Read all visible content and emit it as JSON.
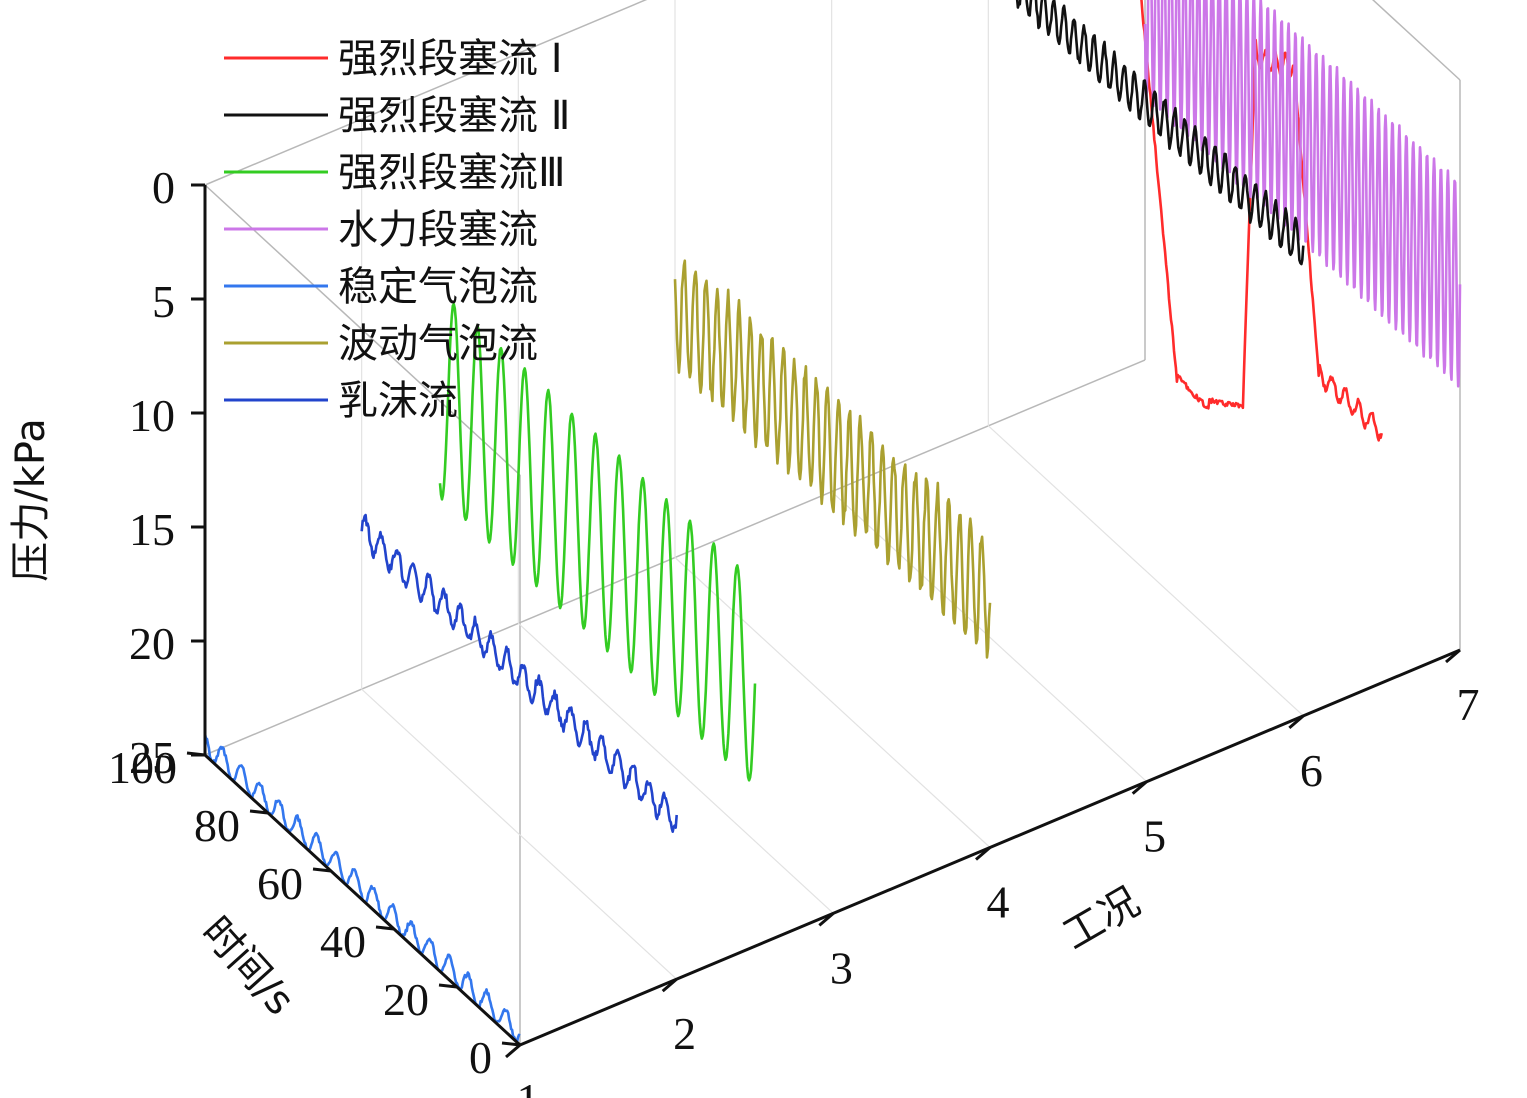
{
  "chart_data": {
    "type": "line",
    "projection": "3d",
    "xlabel": "工况",
    "ylabel": "时间/s",
    "zlabel": "压力/kPa",
    "x_ticks": [
      "1",
      "2",
      "3",
      "4",
      "5",
      "6",
      "7"
    ],
    "y_ticks": [
      "0",
      "20",
      "40",
      "60",
      "80",
      "100"
    ],
    "z_ticks": [
      "0",
      "5",
      "10",
      "15",
      "20",
      "25"
    ],
    "xlim": [
      1,
      7
    ],
    "ylim": [
      0,
      100
    ],
    "zlim": [
      0,
      25
    ],
    "z_inverted": true,
    "legend_position": "top-left",
    "series": [
      {
        "name": "强烈段塞流 Ⅰ",
        "color": "#ff2b2b",
        "condition": 6.5,
        "pressure_mean": 12,
        "amplitude": 0.4,
        "period": 8,
        "noise": 0.3,
        "kind": "slug"
      },
      {
        "name": "强烈段塞流 Ⅱ",
        "color": "#111111",
        "condition": 6.0,
        "pressure_mean": 4.5,
        "amplitude": 0.9,
        "period": 3.2,
        "noise": 0.3,
        "kind": "wave"
      },
      {
        "name": "强烈段塞流Ⅲ",
        "color": "#33cc22",
        "condition": 2.5,
        "pressure_mean": 13.5,
        "amplitude": 4.5,
        "period": 7.5,
        "noise": 0.1,
        "kind": "wave"
      },
      {
        "name": "水力段塞流",
        "color": "#cc77e8",
        "condition": 7.0,
        "pressure_mean": 9,
        "amplitude": 4.5,
        "period": 2.2,
        "noise": 0.2,
        "kind": "wave"
      },
      {
        "name": "稳定气泡流",
        "color": "#3377ee",
        "condition": 1.0,
        "pressure_mean": 24.5,
        "amplitude": 0.5,
        "period": 6,
        "noise": 0.2,
        "kind": "wave"
      },
      {
        "name": "波动气泡流",
        "color": "#aaa030",
        "condition": 4.0,
        "pressure_mean": 14,
        "amplitude": 2.5,
        "period": 3.5,
        "noise": 0.8,
        "kind": "wave"
      },
      {
        "name": "乳沫流",
        "color": "#2244cc",
        "condition": 2.0,
        "pressure_mean": 18,
        "amplitude": 0.6,
        "period": 5,
        "noise": 0.4,
        "kind": "wave"
      }
    ]
  }
}
